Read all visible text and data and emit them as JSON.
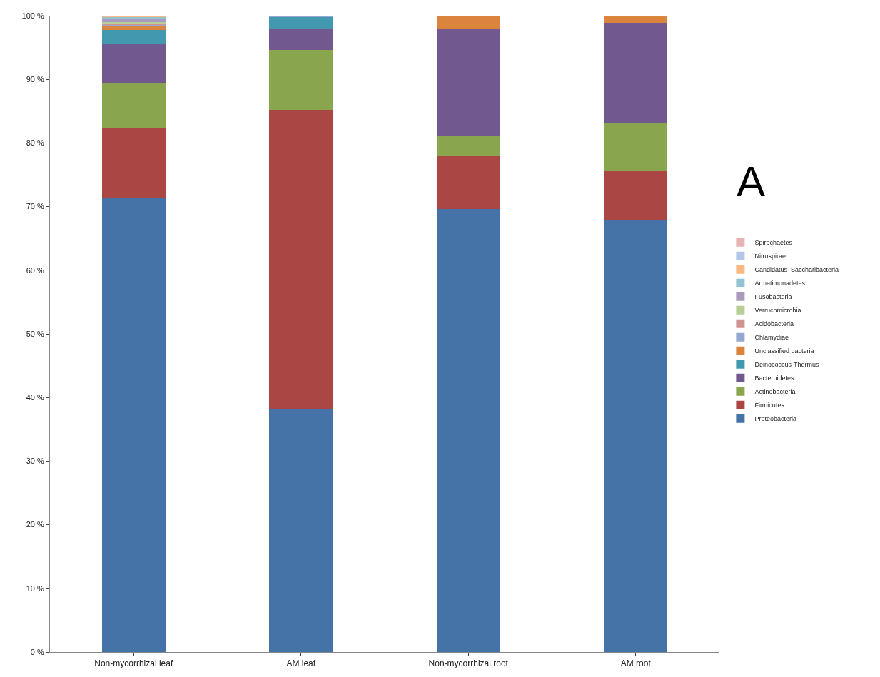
{
  "chart_data": {
    "type": "bar",
    "stacked": true,
    "categories": [
      "Non-mycorrhizal leaf",
      "AM leaf",
      "Non-mycorrhizal root",
      "AM root"
    ],
    "series": [
      {
        "name": "Proteobacteria",
        "color": "#4572a7",
        "values": [
          71.4,
          38.1,
          69.6,
          67.8
        ]
      },
      {
        "name": "Firmicutes",
        "color": "#aa4643",
        "values": [
          11.0,
          47.1,
          8.3,
          7.8
        ]
      },
      {
        "name": "Actinobacteria",
        "color": "#89a54e",
        "values": [
          7.0,
          9.4,
          3.2,
          7.5
        ]
      },
      {
        "name": "Bacteroidetes",
        "color": "#71588f",
        "values": [
          6.2,
          3.3,
          16.8,
          15.8
        ]
      },
      {
        "name": "Deinococcus-Thermus",
        "color": "#4198af",
        "values": [
          2.2,
          1.9,
          0,
          0
        ]
      },
      {
        "name": "Unclassified bacteria",
        "color": "#db843d",
        "values": [
          0.5,
          0,
          2.1,
          1.1
        ]
      },
      {
        "name": "Chlamydiae",
        "color": "#93a9cf",
        "values": [
          0.3,
          0.1,
          0,
          0
        ]
      },
      {
        "name": "Acidobacteria",
        "color": "#d19392",
        "values": [
          0.2,
          0,
          0,
          0
        ]
      },
      {
        "name": "Verrucomicrobia",
        "color": "#b9cd96",
        "values": [
          0.2,
          0,
          0,
          0
        ]
      },
      {
        "name": "Fusobacteria",
        "color": "#a99bbd",
        "values": [
          0.6,
          0.1,
          0,
          0
        ]
      },
      {
        "name": "Armatimonadetes",
        "color": "#92c3d4",
        "values": [
          0.2,
          0,
          0,
          0
        ]
      },
      {
        "name": "Candidatus_Saccharibacteria",
        "color": "#f9b980",
        "values": [
          0.1,
          0,
          0,
          0
        ]
      },
      {
        "name": "Nitrospirae",
        "color": "#b3c6e5",
        "values": [
          0.1,
          0,
          0,
          0
        ]
      },
      {
        "name": "Spirochaetes",
        "color": "#e5b3b2",
        "values": [
          0,
          0,
          0,
          0
        ]
      }
    ],
    "ylim": [
      0,
      100
    ],
    "yticks": [
      {
        "value": 0,
        "label": "0 %"
      },
      {
        "value": 10,
        "label": "10 %"
      },
      {
        "value": 20,
        "label": "20 %"
      },
      {
        "value": 30,
        "label": "30 %"
      },
      {
        "value": 40,
        "label": "40 %"
      },
      {
        "value": 50,
        "label": "50 %"
      },
      {
        "value": 60,
        "label": "60 %"
      },
      {
        "value": 70,
        "label": "70 %"
      },
      {
        "value": 80,
        "label": "80 %"
      },
      {
        "value": 90,
        "label": "90 %"
      },
      {
        "value": 100,
        "label": "100 %"
      }
    ],
    "legend": "right",
    "annotations": [
      "A"
    ]
  }
}
